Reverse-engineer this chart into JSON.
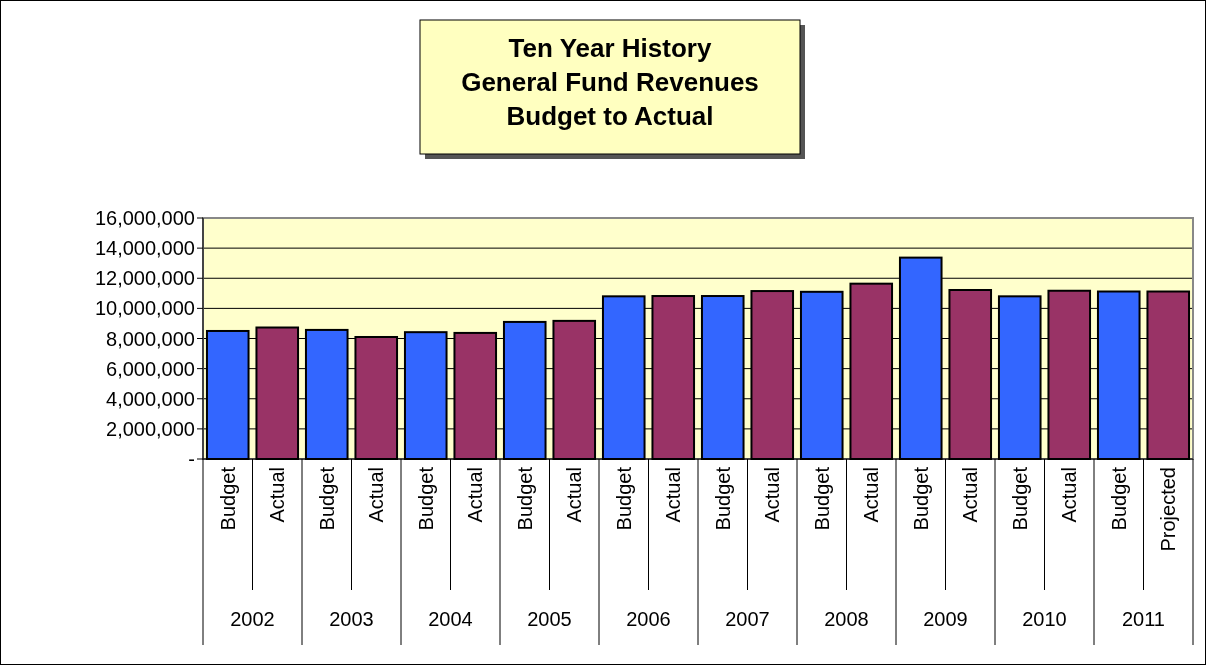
{
  "chart_data": {
    "type": "bar",
    "title": "Ten Year History\nGeneral Fund Revenues\nBudget to Actual",
    "categories": [
      "Budget",
      "Actual",
      "Budget",
      "Actual",
      "Budget",
      "Actual",
      "Budget",
      "Actual",
      "Budget",
      "Actual",
      "Budget",
      "Actual",
      "Budget",
      "Actual",
      "Budget",
      "Actual",
      "Budget",
      "Actual",
      "Budget",
      "Projected"
    ],
    "values": [
      8500000,
      8730000,
      8570000,
      8100000,
      8420000,
      8370000,
      9100000,
      9170000,
      10800000,
      10820000,
      10820000,
      11150000,
      11100000,
      11640000,
      13370000,
      11220000,
      10800000,
      11170000,
      11120000,
      11120000
    ],
    "colors": [
      "#3366ff",
      "#993366",
      "#3366ff",
      "#993366",
      "#3366ff",
      "#993366",
      "#3366ff",
      "#993366",
      "#3366ff",
      "#993366",
      "#3366ff",
      "#993366",
      "#3366ff",
      "#993366",
      "#3366ff",
      "#993366",
      "#3366ff",
      "#993366",
      "#3366ff",
      "#993366"
    ],
    "annotations": [
      "2002",
      "2003",
      "2004",
      "2005",
      "2006",
      "2007",
      "2008",
      "2009",
      "2010",
      "2011"
    ],
    "ylim": [
      0,
      16000000
    ],
    "yticks": [
      {
        "value": 0,
        "label": "-"
      },
      {
        "value": 2000000,
        "label": "2,000,000"
      },
      {
        "value": 4000000,
        "label": "4,000,000"
      },
      {
        "value": 6000000,
        "label": "6,000,000"
      },
      {
        "value": 8000000,
        "label": "8,000,000"
      },
      {
        "value": 10000000,
        "label": "10,000,000"
      },
      {
        "value": 12000000,
        "label": "12,000,000"
      },
      {
        "value": 14000000,
        "label": "14,000,000"
      },
      {
        "value": 16000000,
        "label": "16,000,000"
      }
    ],
    "grid": "y"
  }
}
